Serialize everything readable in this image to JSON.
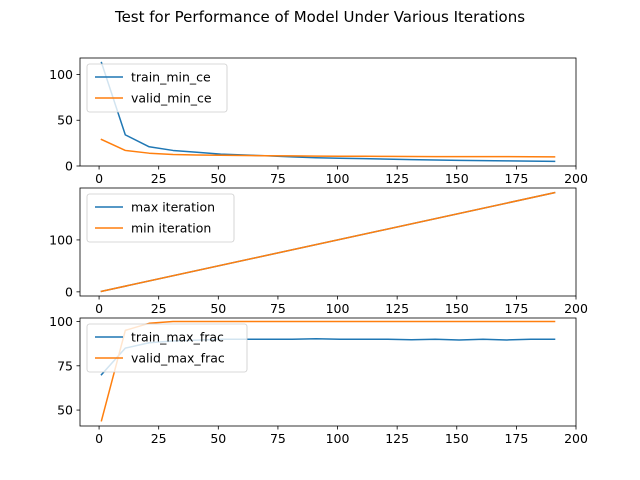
{
  "title": "Test for Performance of Model Under Various Iterations",
  "chart_data": [
    {
      "type": "line",
      "xlim": [
        -8,
        200
      ],
      "ylim": [
        0,
        118
      ],
      "xticks": [
        0,
        25,
        50,
        75,
        100,
        125,
        150,
        175,
        200
      ],
      "yticks": [
        0,
        50,
        100
      ],
      "legend": "top-left",
      "grid": false,
      "series": [
        {
          "name": "train_min_ce",
          "color": "#1f77b4",
          "x": [
            1,
            11,
            21,
            31,
            41,
            51,
            61,
            71,
            81,
            91,
            101,
            111,
            121,
            131,
            141,
            151,
            161,
            171,
            181,
            191
          ],
          "y": [
            113,
            34,
            21,
            17,
            15,
            13,
            12,
            11,
            10,
            9,
            8.5,
            8,
            7.5,
            7,
            6.5,
            6.2,
            5.9,
            5.6,
            5.3,
            5
          ]
        },
        {
          "name": "valid_min_ce",
          "color": "#ff7f0e",
          "x": [
            1,
            11,
            21,
            31,
            41,
            51,
            61,
            71,
            81,
            91,
            101,
            111,
            121,
            131,
            141,
            151,
            161,
            171,
            181,
            191
          ],
          "y": [
            29,
            17,
            14,
            12.5,
            12,
            11.8,
            11.5,
            11.2,
            11,
            10.8,
            10.7,
            10.6,
            10.5,
            10.4,
            10.3,
            10.3,
            10.2,
            10.2,
            10.1,
            10
          ]
        }
      ]
    },
    {
      "type": "line",
      "xlim": [
        -8,
        200
      ],
      "ylim": [
        -8,
        200
      ],
      "xticks": [
        0,
        25,
        50,
        75,
        100,
        125,
        150,
        175,
        200
      ],
      "yticks": [
        0,
        100
      ],
      "legend": "top-left",
      "grid": false,
      "series": [
        {
          "name": "max iteration",
          "color": "#1f77b4",
          "x": [
            1,
            191
          ],
          "y": [
            1,
            191
          ]
        },
        {
          "name": "min iteration",
          "color": "#ff7f0e",
          "x": [
            1,
            191
          ],
          "y": [
            1,
            191
          ]
        }
      ]
    },
    {
      "type": "line",
      "xlim": [
        -8,
        200
      ],
      "ylim": [
        41,
        102
      ],
      "xticks": [
        0,
        25,
        50,
        75,
        100,
        125,
        150,
        175,
        200
      ],
      "yticks": [
        50,
        75,
        100
      ],
      "legend": "top-left",
      "grid": false,
      "series": [
        {
          "name": "train_max_frac",
          "color": "#1f77b4",
          "x": [
            1,
            11,
            21,
            31,
            41,
            51,
            61,
            71,
            81,
            91,
            101,
            111,
            121,
            131,
            141,
            151,
            161,
            171,
            181,
            191
          ],
          "y": [
            70,
            85,
            88,
            89,
            89.5,
            90,
            90,
            90,
            90,
            90.3,
            90,
            90,
            90,
            89.7,
            90,
            89.6,
            90,
            89.6,
            90,
            90
          ]
        },
        {
          "name": "valid_max_frac",
          "color": "#ff7f0e",
          "x": [
            1,
            11,
            21,
            31,
            41,
            51,
            61,
            71,
            81,
            91,
            101,
            111,
            121,
            131,
            141,
            151,
            161,
            171,
            181,
            191
          ],
          "y": [
            44,
            95,
            99,
            100,
            100,
            100,
            100,
            100,
            100,
            100,
            100,
            100,
            100,
            100,
            100,
            100,
            100,
            100,
            100,
            100
          ]
        }
      ]
    }
  ]
}
